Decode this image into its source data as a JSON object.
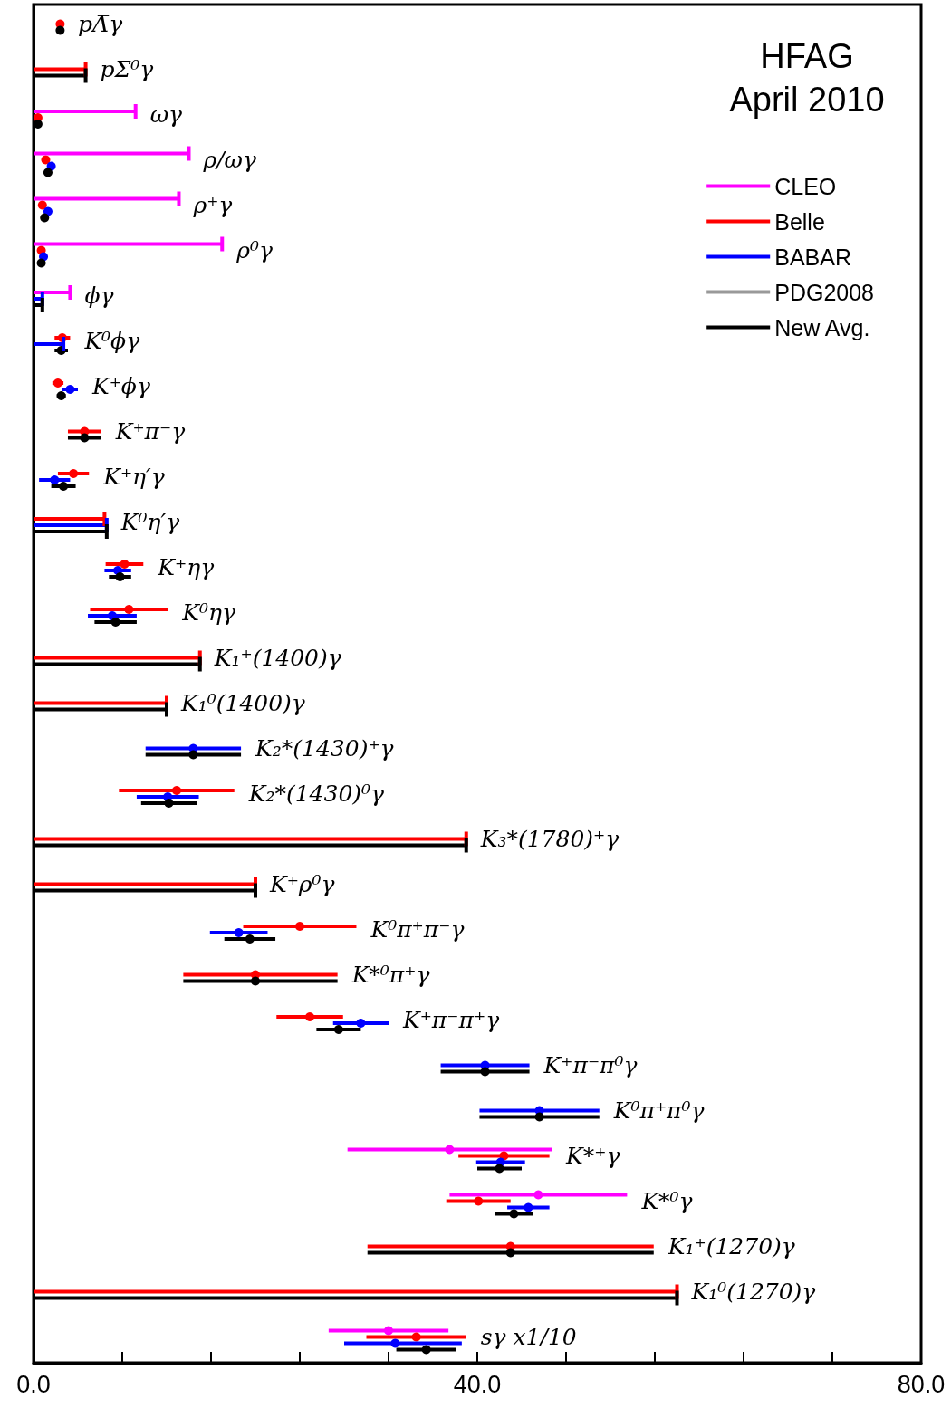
{
  "chart_data": {
    "type": "scatter",
    "orientation": "horizontal",
    "title": "HFAG",
    "subtitle": "April 2010",
    "categories": [
      "pΛ̅γ",
      "pΣ̅⁰γ",
      "ωγ",
      "ρ/ωγ",
      "ρ⁺γ",
      "ρ⁰γ",
      "ϕγ",
      "K⁰ϕγ",
      "K⁺ϕγ",
      "K⁺π⁻γ",
      "K⁺η′γ",
      "K⁰η′γ",
      "K⁺ηγ",
      "K⁰ηγ",
      "K₁⁺(1400)γ",
      "K₁⁰(1400)γ",
      "K₂*(1430)⁺γ",
      "K₂*(1430)⁰γ",
      "K₃*(1780)⁺γ",
      "K⁺ρ⁰γ",
      "K⁰π⁺π⁻γ",
      "K*⁰π⁺γ",
      "K⁺π⁻π⁺γ",
      "K⁺π⁻π⁰γ",
      "K⁰π⁺π⁰γ",
      "K*⁺γ",
      "K*⁰γ",
      "K₁⁺(1270)γ",
      "K₁⁰(1270)γ",
      "sγ x1/10"
    ],
    "xlim": [
      0,
      80
    ],
    "xticks": [
      {
        "value": 0,
        "label": "0.0"
      },
      {
        "value": 8,
        "label": null
      },
      {
        "value": 16,
        "label": null
      },
      {
        "value": 24,
        "label": null
      },
      {
        "value": 32,
        "label": null
      },
      {
        "value": 40,
        "label": "40.0"
      },
      {
        "value": 48,
        "label": null
      },
      {
        "value": 56,
        "label": null
      },
      {
        "value": 64,
        "label": null
      },
      {
        "value": 72,
        "label": null
      },
      {
        "value": 80,
        "label": "80.0"
      }
    ],
    "tick_labels": "x",
    "legend": "top right",
    "marker": "circle",
    "series": [
      {
        "name": "CLEO",
        "color": "#ff00ff",
        "values": [
          null,
          null,
          null,
          null,
          null,
          null,
          null,
          null,
          null,
          null,
          null,
          null,
          null,
          null,
          null,
          null,
          null,
          null,
          null,
          null,
          null,
          null,
          null,
          null,
          null,
          37.5,
          45.5,
          null,
          null,
          32.0
        ],
        "errors": [
          null,
          null,
          null,
          null,
          null,
          null,
          null,
          null,
          null,
          null,
          null,
          null,
          null,
          null,
          null,
          null,
          null,
          null,
          null,
          null,
          null,
          null,
          null,
          null,
          null,
          9.2,
          8.0,
          null,
          null,
          5.4
        ]
      },
      {
        "name": "Belle",
        "color": "#ff0000",
        "values": [
          2.4,
          null,
          0.4,
          1.1,
          0.8,
          0.7,
          null,
          2.6,
          2.2,
          4.6,
          3.6,
          null,
          8.2,
          8.6,
          null,
          null,
          null,
          12.9,
          null,
          null,
          24.0,
          20.0,
          24.9,
          null,
          null,
          42.4,
          40.1,
          43.0,
          null,
          34.5
        ],
        "errors": [
          0.3,
          null,
          0.2,
          0.2,
          0.2,
          0.2,
          null,
          0.7,
          0.5,
          1.5,
          1.4,
          null,
          1.7,
          3.5,
          null,
          null,
          null,
          5.2,
          null,
          null,
          5.1,
          [
            13.5,
            27.4
          ],
          3.0,
          null,
          null,
          4.1,
          2.9,
          12.9,
          null,
          4.5
        ]
      },
      {
        "name": "BABAR",
        "color": "#0000ff",
        "values": [
          null,
          null,
          null,
          1.6,
          1.3,
          0.9,
          null,
          null,
          3.3,
          null,
          1.9,
          null,
          7.6,
          7.1,
          null,
          null,
          14.4,
          12.1,
          null,
          null,
          18.5,
          null,
          29.5,
          40.7,
          45.6,
          42.1,
          44.6,
          null,
          null,
          32.6
        ],
        "errors": [
          null,
          null,
          null,
          0.2,
          0.2,
          0.2,
          null,
          null,
          0.7,
          null,
          1.4,
          null,
          1.2,
          2.2,
          null,
          null,
          4.3,
          2.8,
          null,
          null,
          2.6,
          null,
          2.5,
          4.0,
          5.4,
          2.2,
          1.9,
          null,
          null,
          [
            28.0,
            38.6
          ]
        ]
      },
      {
        "name": "PDG2008",
        "color": "#999999",
        "values": [
          null,
          null,
          null,
          null,
          null,
          null,
          null,
          null,
          null,
          null,
          null,
          null,
          null,
          null,
          null,
          null,
          null,
          null,
          null,
          null,
          null,
          null,
          null,
          null,
          null,
          null,
          null,
          null,
          null,
          null
        ]
      },
      {
        "name": "New Avg.",
        "color": "#000000",
        "values": [
          2.4,
          null,
          0.4,
          1.3,
          1.0,
          0.7,
          null,
          2.5,
          2.5,
          4.6,
          2.7,
          null,
          7.8,
          7.4,
          null,
          null,
          14.4,
          12.2,
          null,
          null,
          19.5,
          20.0,
          27.5,
          40.7,
          45.6,
          42.0,
          43.3,
          43.0,
          null,
          35.4
        ],
        "errors": [
          0.3,
          null,
          0.2,
          0.2,
          0.2,
          0.2,
          null,
          0.6,
          0.4,
          1.5,
          1.1,
          null,
          1.0,
          1.9,
          null,
          null,
          4.3,
          2.5,
          null,
          null,
          2.3,
          [
            13.5,
            27.4
          ],
          2.0,
          4.0,
          5.4,
          2.0,
          1.7,
          12.9,
          null,
          2.7
        ]
      },
      {
        "type": "bar",
        "color": "#ff00ff",
        "values": [
          null,
          null,
          9.2,
          14.0,
          13.1,
          17.0,
          3.3,
          null,
          null,
          null,
          null,
          null,
          null,
          null,
          null,
          null,
          null,
          null,
          null,
          null,
          null,
          null,
          null,
          null,
          null,
          null,
          null,
          null,
          null,
          null
        ]
      },
      {
        "type": "bar",
        "color": "#ff0000",
        "values": [
          null,
          4.7,
          null,
          null,
          null,
          null,
          null,
          null,
          null,
          null,
          null,
          6.4,
          null,
          null,
          15.0,
          12.0,
          null,
          null,
          39.0,
          20.0,
          null,
          null,
          null,
          null,
          null,
          null,
          null,
          null,
          58.0,
          null
        ]
      },
      {
        "type": "bar",
        "color": "#0000ff",
        "values": [
          null,
          null,
          null,
          null,
          null,
          null,
          0.8,
          2.7,
          null,
          null,
          null,
          6.6,
          null,
          null,
          null,
          null,
          null,
          null,
          null,
          null,
          null,
          null,
          null,
          null,
          null,
          null,
          null,
          null,
          null,
          null
        ]
      },
      {
        "type": "bar",
        "color": "#000000",
        "values": [
          null,
          4.7,
          null,
          null,
          null,
          null,
          0.8,
          null,
          null,
          null,
          null,
          6.6,
          null,
          null,
          15.0,
          12.0,
          null,
          null,
          39.0,
          20.0,
          null,
          null,
          null,
          null,
          null,
          null,
          null,
          null,
          58.0,
          null
        ]
      }
    ]
  }
}
